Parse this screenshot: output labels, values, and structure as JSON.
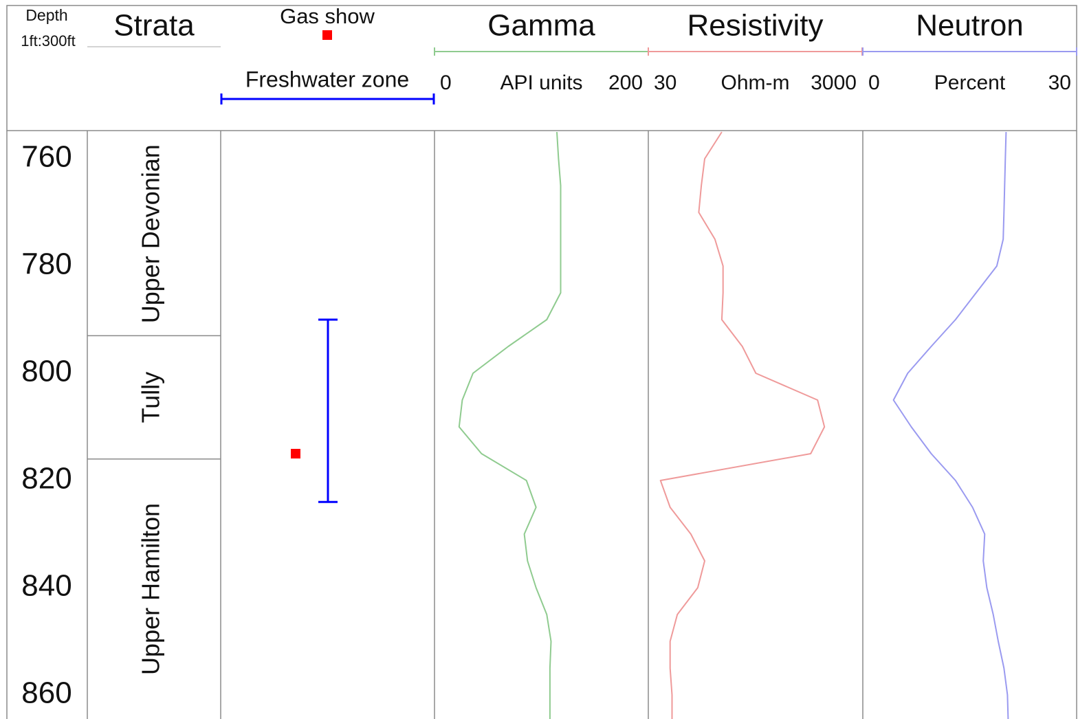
{
  "chart_data": {
    "type": "well_log",
    "depth_label": "Depth",
    "scale_label": "1ft:300ft",
    "strata_label": "Strata",
    "ylim": [
      755,
      865
    ],
    "yticks": [
      760,
      780,
      800,
      820,
      840,
      860
    ],
    "strata": [
      "Upper Devonian",
      "Tully",
      "Upper Hamilton"
    ],
    "strata_boundaries": [
      793,
      816
    ],
    "gas_show": {
      "label": "Gas show",
      "color": "#ff0000",
      "depths": [
        815
      ]
    },
    "freshwater": {
      "label": "Freshwater zone",
      "color": "#0000ff",
      "top": 790,
      "base": 824
    },
    "depths": [
      755,
      760,
      765,
      770,
      775,
      780,
      785,
      790,
      795,
      800,
      805,
      810,
      815,
      820,
      825,
      830,
      835,
      840,
      845,
      850,
      855,
      860,
      865
    ],
    "series": [
      {
        "name": "Gamma",
        "unit": "API units",
        "color": "#8fcb8f",
        "log": false,
        "xlim": [
          0,
          200
        ],
        "xticks": [
          0,
          200
        ],
        "values": [
          114.5,
          116,
          118,
          118,
          118,
          118,
          118,
          105,
          69,
          36,
          26,
          23,
          44,
          86,
          95,
          84,
          87,
          95,
          105,
          109,
          108,
          108,
          108
        ]
      },
      {
        "name": "Resistivity",
        "unit": "Ohm-m",
        "color": "#ef9a9a",
        "log": true,
        "xlim": [
          30,
          3000
        ],
        "xticks": [
          30,
          3000
        ],
        "values": [
          146,
          101,
          94,
          89,
          126,
          150,
          150,
          146,
          227,
          304,
          1149,
          1332,
          991,
          39,
          48,
          75,
          101,
          87,
          56,
          48,
          48,
          50,
          50
        ]
      },
      {
        "name": "Neutron",
        "unit": "Percent",
        "color": "#9a9af0",
        "log": false,
        "xlim": [
          0,
          30
        ],
        "xticks": [
          0,
          30
        ],
        "values": [
          20.1,
          20.0,
          19.9,
          19.8,
          19.7,
          18.8,
          15.9,
          13.0,
          9.6,
          6.3,
          4.3,
          6.8,
          9.6,
          13.0,
          15.4,
          17.1,
          16.9,
          17.4,
          18.3,
          19.0,
          19.8,
          20.3,
          20.4
        ]
      }
    ]
  }
}
